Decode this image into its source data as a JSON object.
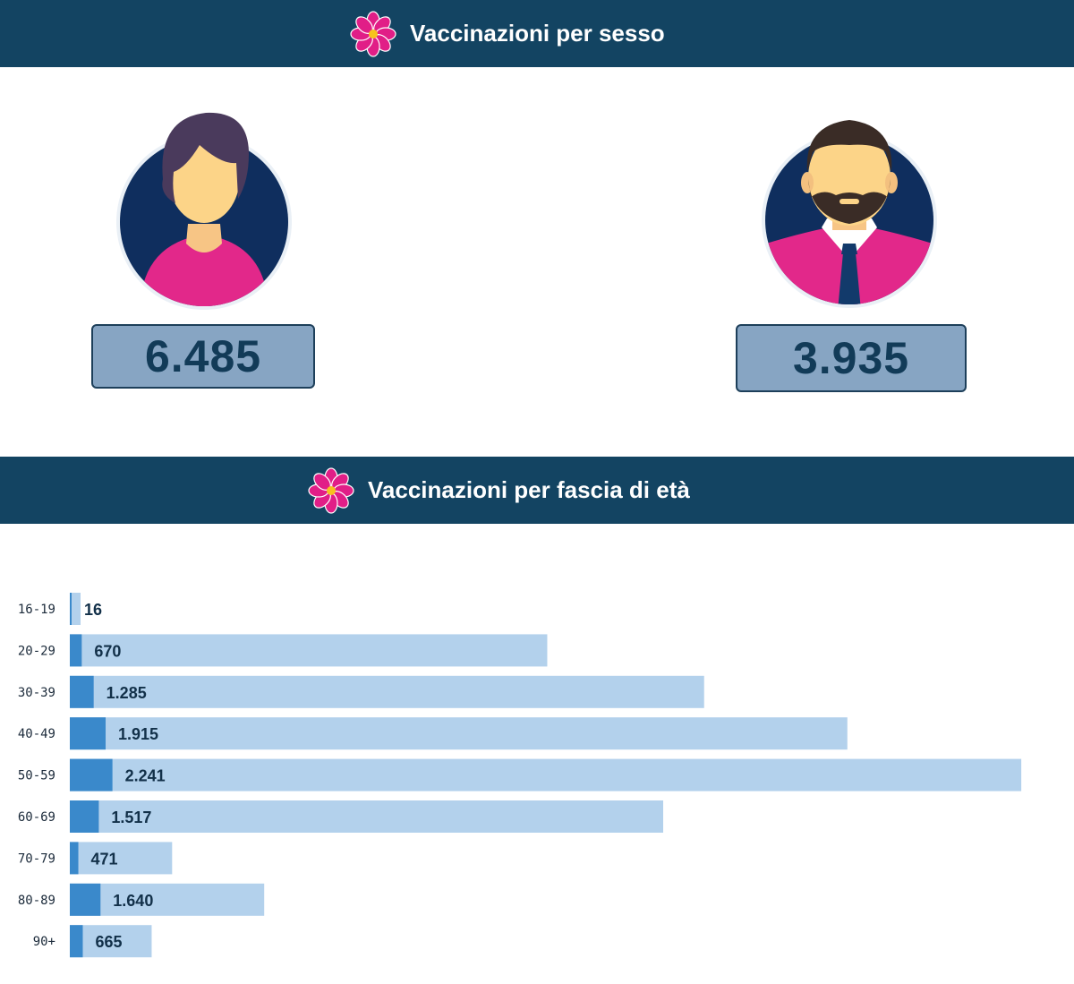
{
  "sections": {
    "sex_title": "Vaccinazioni per sesso",
    "age_title": "Vaccinazioni per fascia di età"
  },
  "icons": {
    "section_icon": "pink-flower-icon",
    "female": "female-avatar-icon",
    "male": "male-avatar-icon"
  },
  "sex": {
    "female_count": "6.485",
    "male_count": "3.935"
  },
  "colors": {
    "banner": "#134462",
    "count_box": "#87a5c3",
    "bar_total": "#b3d1ec",
    "bar_segment": "#3a89cb",
    "accent_pink": "#e11e87"
  },
  "chart_data": {
    "type": "bar",
    "orientation": "horizontal",
    "title": "Vaccinazioni per fascia di età",
    "categories": [
      "16-19",
      "20-29",
      "30-39",
      "40-49",
      "50-59",
      "60-69",
      "70-79",
      "80-89",
      "90+"
    ],
    "values": [
      16,
      670,
      1285,
      1915,
      2241,
      1517,
      471,
      1640,
      665
    ],
    "value_labels": [
      "16",
      "670",
      "1.285",
      "1.915",
      "2.241",
      "1.517",
      "471",
      "1.640",
      "665"
    ],
    "bar_lengths": [
      16,
      1400,
      1860,
      2280,
      2790,
      1740,
      300,
      570,
      240
    ],
    "highlight_lengths": [
      2,
      35,
      70,
      105,
      125,
      85,
      25,
      90,
      38
    ],
    "xlim": [
      0,
      2900
    ],
    "grid": false,
    "legend": "none"
  }
}
